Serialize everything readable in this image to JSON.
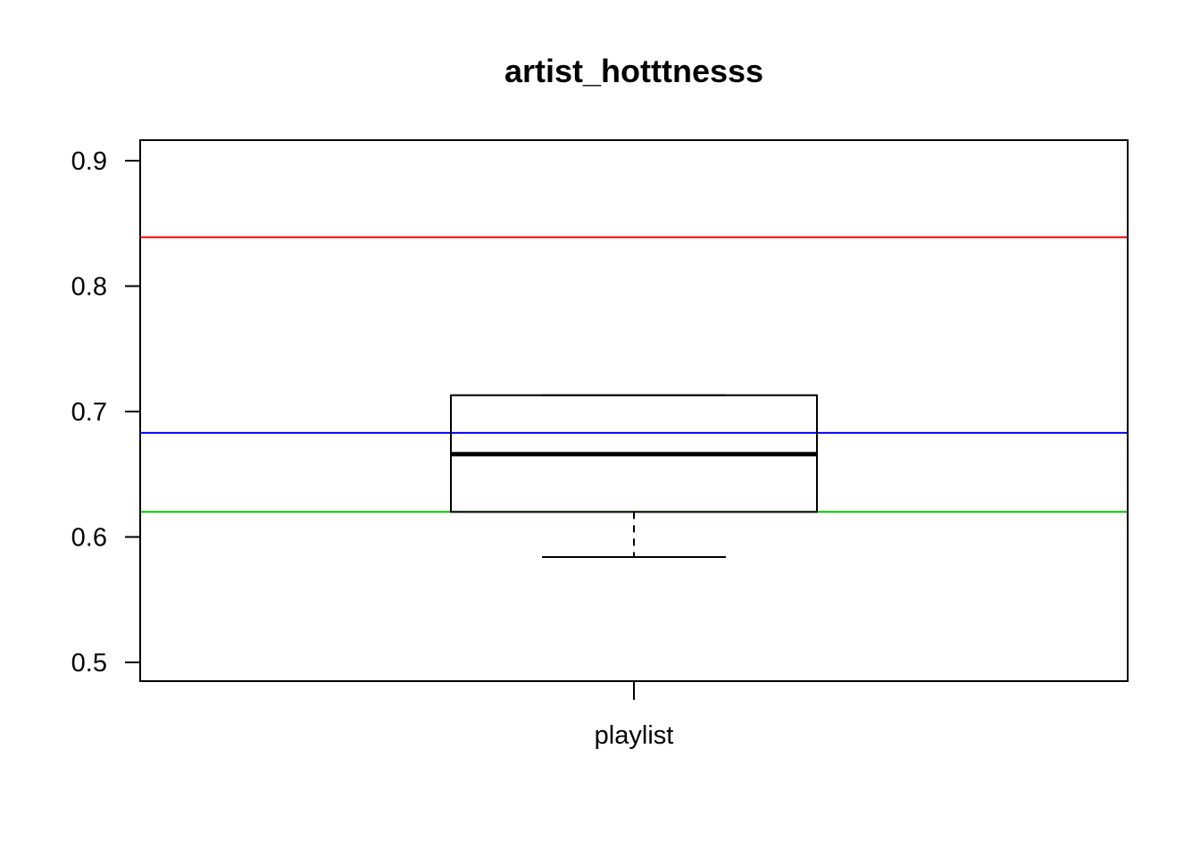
{
  "chart_data": {
    "type": "boxplot",
    "title": "artist_hotttnesss",
    "xlabel": "",
    "ylabel": "",
    "categories": [
      "playlist"
    ],
    "ylim": [
      0.5,
      0.9
    ],
    "y_ticks": [
      "0.5",
      "0.6",
      "0.7",
      "0.8",
      "0.9"
    ],
    "boxes": [
      {
        "category": "playlist",
        "whisker_low": 0.584,
        "q1": 0.62,
        "median": 0.666,
        "q3": 0.713,
        "whisker_high": 0.713
      }
    ],
    "reference_lines": [
      {
        "y": 0.839,
        "color": "#ff0000"
      },
      {
        "y": 0.683,
        "color": "#0000ff"
      },
      {
        "y": 0.62,
        "color": "#00c000"
      }
    ],
    "grid": false,
    "legend": "none"
  }
}
